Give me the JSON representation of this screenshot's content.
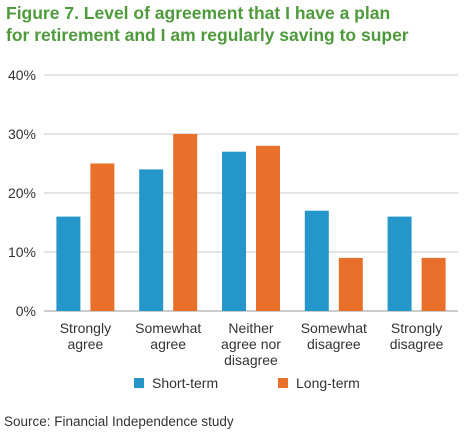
{
  "title_lines": [
    "Figure 7. Level of agreement that I have a plan",
    "for retirement and I am regularly saving to super"
  ],
  "source": "Source: Financial Independence study",
  "colors": {
    "title": "#4e9a3c",
    "short_term": "#2496c9",
    "long_term": "#e9702a"
  },
  "chart_data": {
    "type": "bar",
    "categories": [
      [
        "Strongly",
        "agree"
      ],
      [
        "Somewhat",
        "agree"
      ],
      [
        "Neither",
        "agree nor",
        "disagree"
      ],
      [
        "Somewhat",
        "disagree"
      ],
      [
        "Strongly",
        "disagree"
      ]
    ],
    "series": [
      {
        "name": "Short-term",
        "values": [
          16,
          24,
          27,
          17,
          16
        ]
      },
      {
        "name": "Long-term",
        "values": [
          25,
          30,
          28,
          9,
          9
        ]
      }
    ],
    "ylim": [
      0,
      40
    ],
    "yticks": [
      "0%",
      "10%",
      "20%",
      "30%",
      "40%"
    ],
    "grid": true,
    "legend_position": "bottom"
  }
}
